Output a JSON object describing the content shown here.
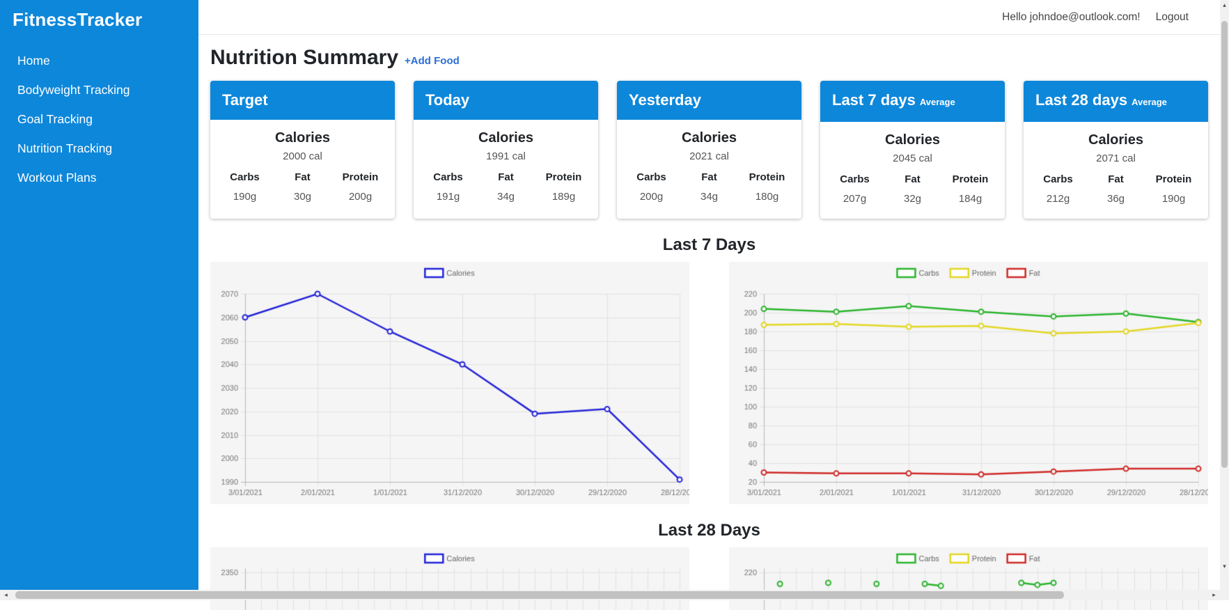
{
  "app": {
    "brand": "FitnessTracker"
  },
  "sidebar": {
    "items": [
      {
        "label": "Home"
      },
      {
        "label": "Bodyweight Tracking"
      },
      {
        "label": "Goal Tracking"
      },
      {
        "label": "Nutrition Tracking"
      },
      {
        "label": "Workout Plans"
      }
    ]
  },
  "header": {
    "greeting": "Hello johndoe@outlook.com!",
    "logout": "Logout"
  },
  "page": {
    "title": "Nutrition Summary",
    "add_food": "+Add Food"
  },
  "card_labels": {
    "calories": "Calories",
    "carbs": "Carbs",
    "fat": "Fat",
    "protein": "Protein"
  },
  "cards": [
    {
      "title": "Target",
      "subtitle": "",
      "calories": "2000 cal",
      "carbs": "190g",
      "fat": "30g",
      "protein": "200g"
    },
    {
      "title": "Today",
      "subtitle": "",
      "calories": "1991 cal",
      "carbs": "191g",
      "fat": "34g",
      "protein": "189g"
    },
    {
      "title": "Yesterday",
      "subtitle": "",
      "calories": "2021 cal",
      "carbs": "200g",
      "fat": "34g",
      "protein": "180g"
    },
    {
      "title": "Last 7 days",
      "subtitle": "Average",
      "calories": "2045 cal",
      "carbs": "207g",
      "fat": "32g",
      "protein": "184g"
    },
    {
      "title": "Last 28 days",
      "subtitle": "Average",
      "calories": "2071 cal",
      "carbs": "212g",
      "fat": "36g",
      "protein": "190g"
    }
  ],
  "sections": {
    "last7": "Last 7 Days",
    "last28": "Last 28 Days"
  },
  "colors": {
    "accent_blue": "#0d87da",
    "link_blue": "#2b6ed3",
    "chart_bg": "#f5f5f5",
    "calories_line": "#2323d9",
    "carbs_line": "#2ab42c",
    "protein_line": "#e3d723",
    "fat_line": "#cf2a27"
  },
  "icons": {
    "scroll_up": "▴",
    "scroll_down": "▾",
    "scroll_left": "◂",
    "scroll_right": "▸"
  },
  "chart_data": [
    {
      "id": "calories_last7",
      "type": "line",
      "legend_position": "top",
      "grid": true,
      "x": [
        "3/01/2021",
        "2/01/2021",
        "1/01/2021",
        "31/12/2020",
        "30/12/2020",
        "29/12/2020",
        "28/12/2020"
      ],
      "series": [
        {
          "name": "Calories",
          "color": "#2323d9",
          "values": [
            2060,
            2070,
            2054,
            2040,
            2019,
            2021,
            1991
          ]
        }
      ],
      "ylim": [
        1990,
        2070
      ],
      "ystep": 10
    },
    {
      "id": "macros_last7",
      "type": "line",
      "legend_position": "top",
      "grid": true,
      "x": [
        "3/01/2021",
        "2/01/2021",
        "1/01/2021",
        "31/12/2020",
        "30/12/2020",
        "29/12/2020",
        "28/12/2020"
      ],
      "series": [
        {
          "name": "Carbs",
          "color": "#2ab42c",
          "values": [
            204,
            201,
            207,
            201,
            196,
            199,
            190
          ]
        },
        {
          "name": "Protein",
          "color": "#e3d723",
          "values": [
            187,
            188,
            185,
            186,
            178,
            180,
            189
          ]
        },
        {
          "name": "Fat",
          "color": "#cf2a27",
          "values": [
            30,
            29,
            29,
            28,
            31,
            34,
            34
          ]
        }
      ],
      "ylim": [
        20,
        220
      ],
      "ystep": 20
    },
    {
      "id": "calories_last28",
      "type": "line",
      "legend_position": "top",
      "grid": true,
      "partially_visible": true,
      "x_count": 28,
      "y_first_tick": 2350,
      "series": [
        {
          "name": "Calories",
          "color": "#2323d9",
          "visible_points": []
        }
      ]
    },
    {
      "id": "macros_last28",
      "type": "line",
      "legend_position": "top",
      "grid": true,
      "partially_visible": true,
      "x_count": 28,
      "y_first_tick": 220,
      "series": [
        {
          "name": "Carbs",
          "color": "#2ab42c",
          "visible_points": [
            {
              "i": 1,
              "v": 209
            },
            {
              "i": 4,
              "v": 210
            },
            {
              "i": 7,
              "v": 209
            },
            {
              "i": 10,
              "v": 209
            },
            {
              "i": 11,
              "v": 207
            },
            {
              "i": 16,
              "v": 210
            },
            {
              "i": 17,
              "v": 208
            },
            {
              "i": 18,
              "v": 210
            }
          ]
        },
        {
          "name": "Protein",
          "color": "#e3d723",
          "visible_points": []
        },
        {
          "name": "Fat",
          "color": "#cf2a27",
          "visible_points": []
        }
      ]
    }
  ]
}
